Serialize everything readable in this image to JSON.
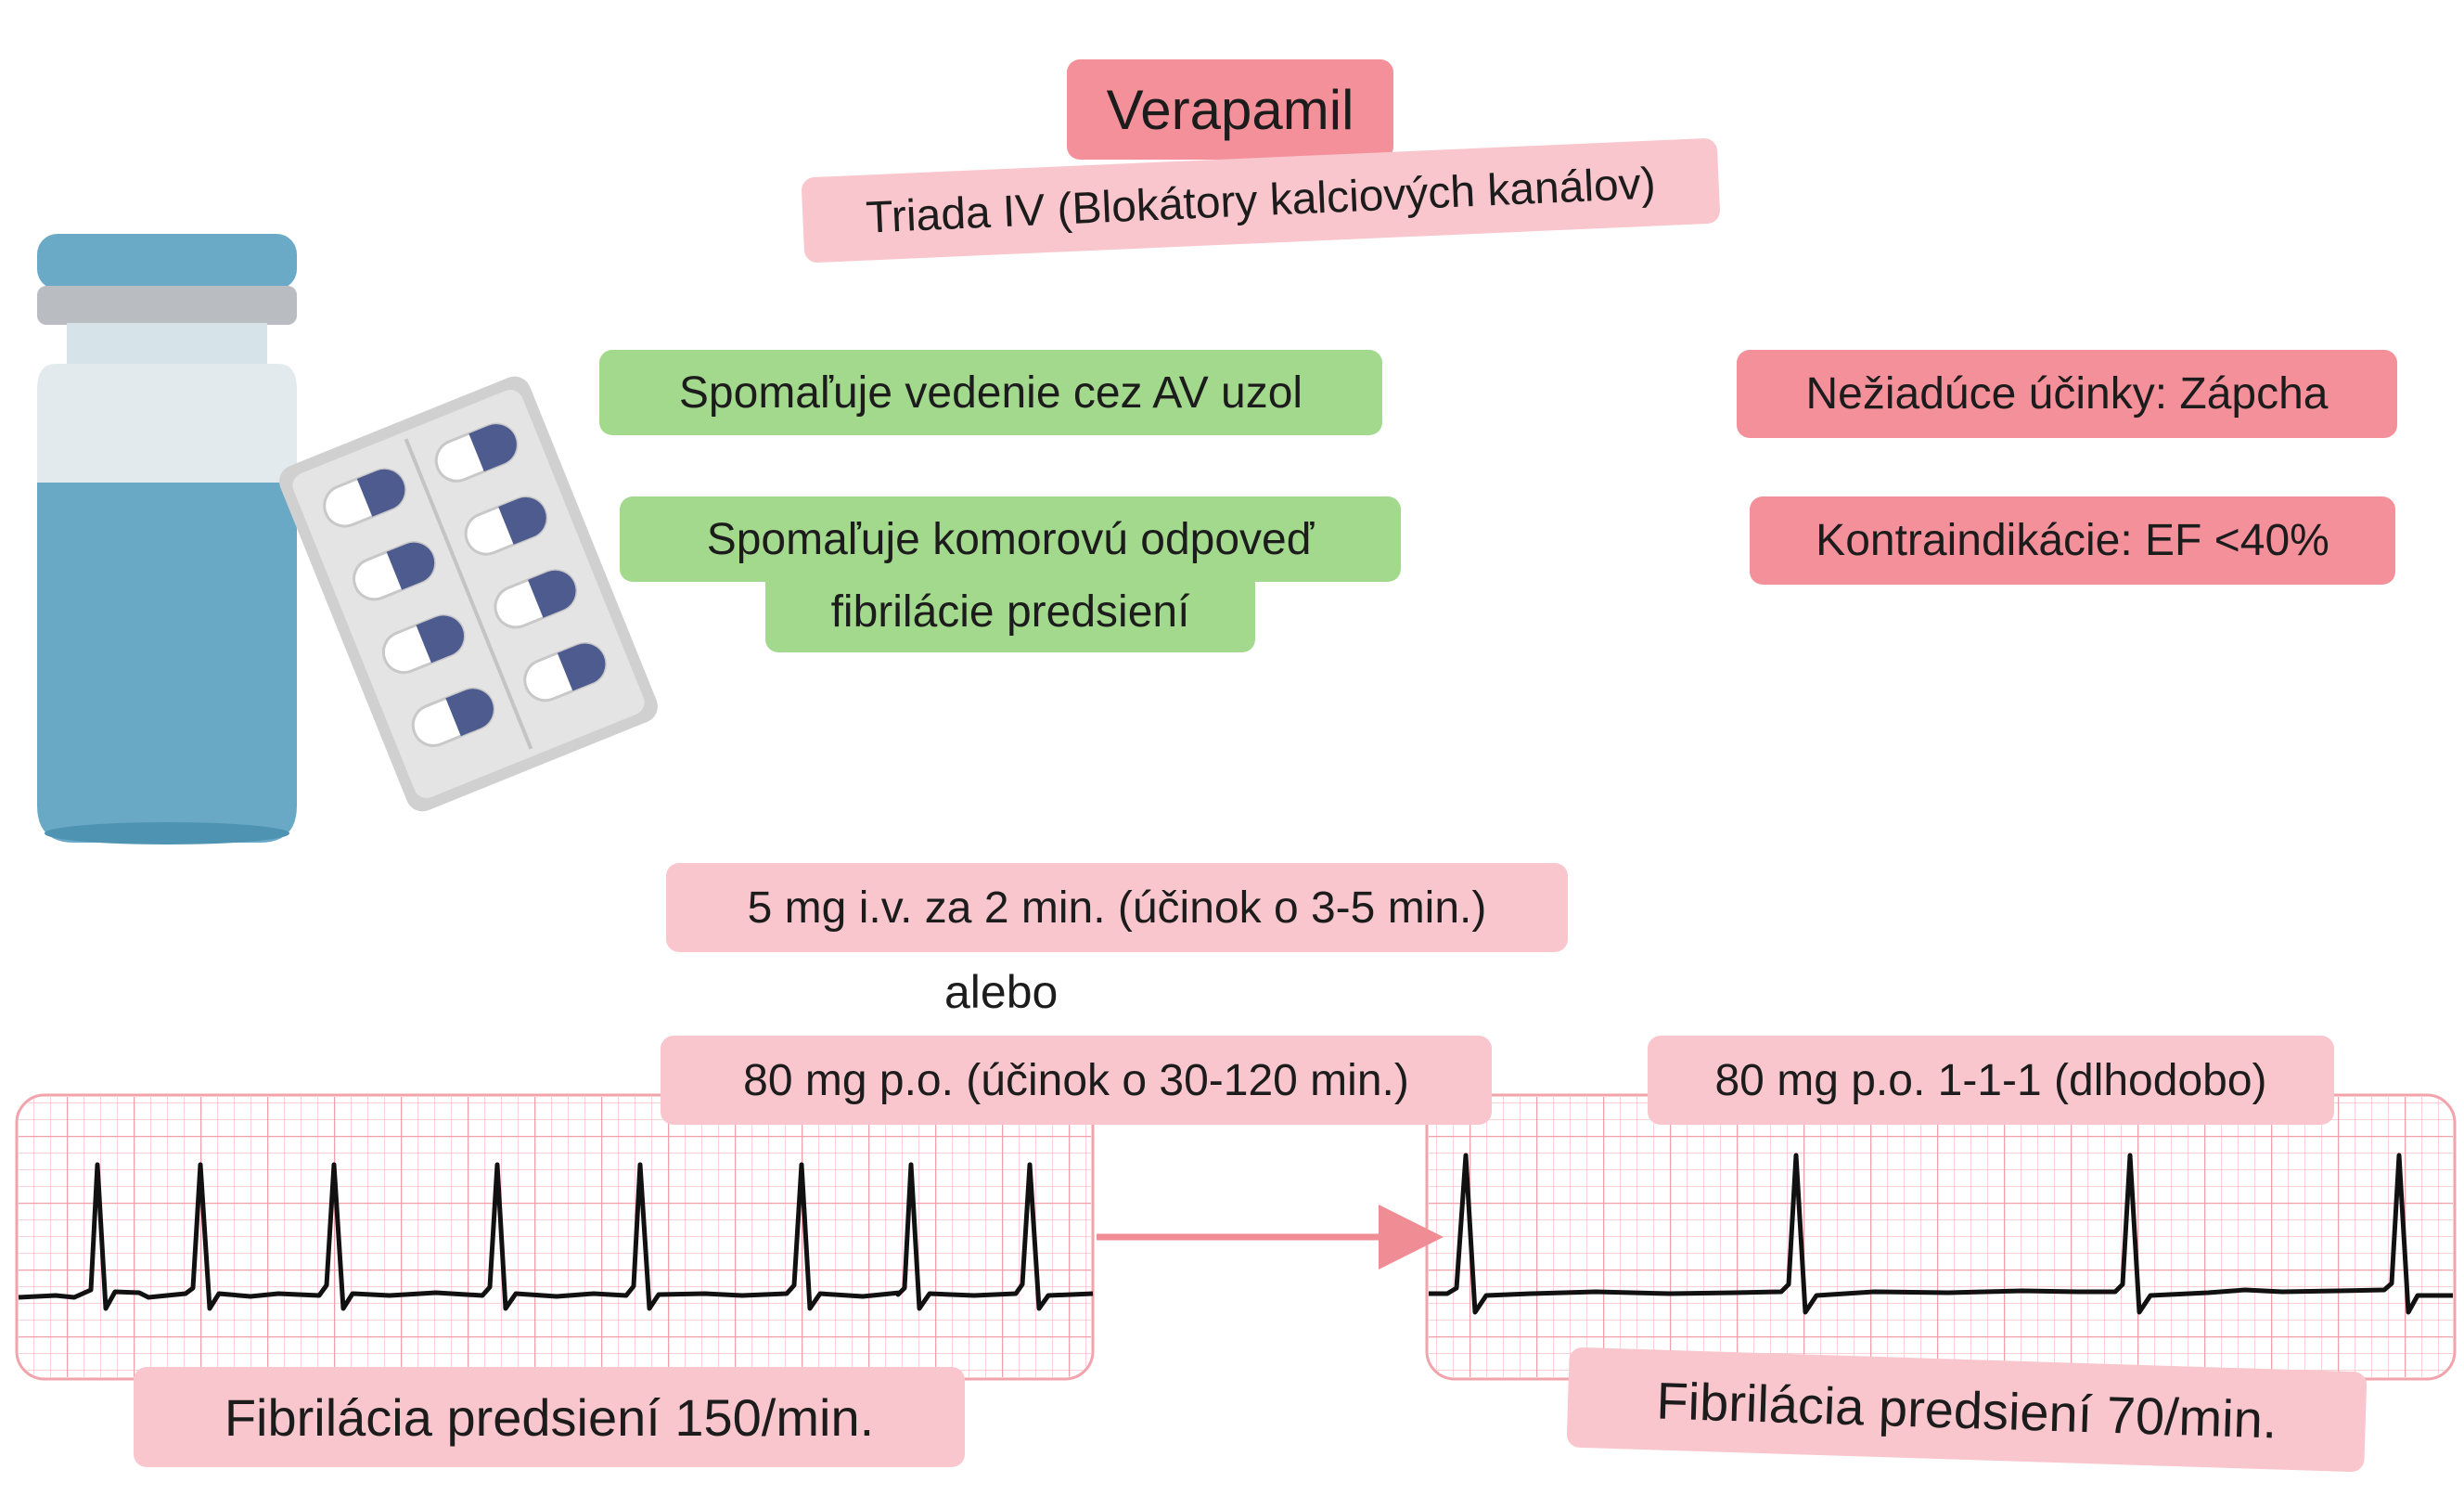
{
  "title": "Verapamil",
  "subtitle": "Triada IV (Blokátory kalciových kanálov)",
  "effects": [
    "Spomaľuje vedenie cez AV uzol",
    "Spomaľuje komorovú odpoveď",
    "fibrilácie predsiení"
  ],
  "adverse": "Nežiadúce účinky: Zápcha",
  "contraindication": "Kontraindikácie: EF <40%",
  "dosing": {
    "iv": "5 mg i.v. za 2 min. (účinok o 3-5 min.)",
    "or": "alebo",
    "po": "80 mg p.o. (účinok o 30-120 min.)",
    "maintenance": "80 mg p.o. 1-1-1 (dlhodobo)"
  },
  "ecg_before_label": "Fibrilácia predsiení 150/min.",
  "ecg_after_label": "Fibrilácia predsiení 70/min.",
  "colors": {
    "green_box": "#a3d98c",
    "pink_box": "#f9c6cd",
    "red_box": "#f4909a",
    "ecg_grid": "#f2a3ab",
    "arrow": "#f08c94",
    "vial_liquid": "#69a9c6"
  },
  "icons": [
    "medicine-vial-icon",
    "pill-blister-icon",
    "ecg-strip-icon",
    "right-arrow-icon"
  ]
}
